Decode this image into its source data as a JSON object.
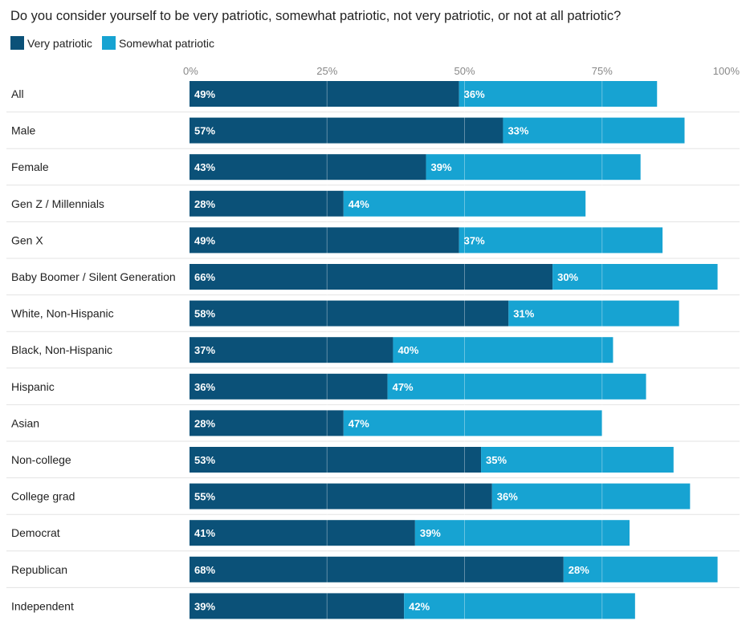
{
  "chart_data": {
    "type": "bar",
    "orientation": "horizontal",
    "stacked": true,
    "title": "Do you consider yourself to be very patriotic, somewhat patriotic, not very patriotic, or not at all patriotic?",
    "xlim": [
      0,
      100
    ],
    "x_ticks": [
      "0%",
      "25%",
      "50%",
      "75%",
      "100%"
    ],
    "x_tick_values": [
      0,
      25,
      50,
      75,
      100
    ],
    "legend_position": "top-left",
    "grid": true,
    "categories": [
      "All",
      "Male",
      "Female",
      "Gen Z / Millennials",
      "Gen X",
      "Baby Boomer / Silent Generation",
      "White, Non-Hispanic",
      "Black, Non-Hispanic",
      "Hispanic",
      "Asian",
      "Non-college",
      "College grad",
      "Democrat",
      "Republican",
      "Independent"
    ],
    "series": [
      {
        "name": "Very patriotic",
        "color": "#0b5178",
        "values": [
          49,
          57,
          43,
          28,
          49,
          66,
          58,
          37,
          36,
          28,
          53,
          55,
          41,
          68,
          39
        ],
        "labels": [
          "49%",
          "57%",
          "43%",
          "28%",
          "49%",
          "66%",
          "58%",
          "37%",
          "36%",
          "28%",
          "53%",
          "55%",
          "41%",
          "68%",
          "39%"
        ]
      },
      {
        "name": "Somewhat patriotic",
        "color": "#17a3d2",
        "values": [
          36,
          33,
          39,
          44,
          37,
          30,
          31,
          40,
          47,
          47,
          35,
          36,
          39,
          28,
          42
        ],
        "labels": [
          "36%",
          "33%",
          "39%",
          "44%",
          "37%",
          "30%",
          "31%",
          "40%",
          "47%",
          "47%",
          "35%",
          "36%",
          "39%",
          "28%",
          "42%"
        ]
      }
    ]
  }
}
